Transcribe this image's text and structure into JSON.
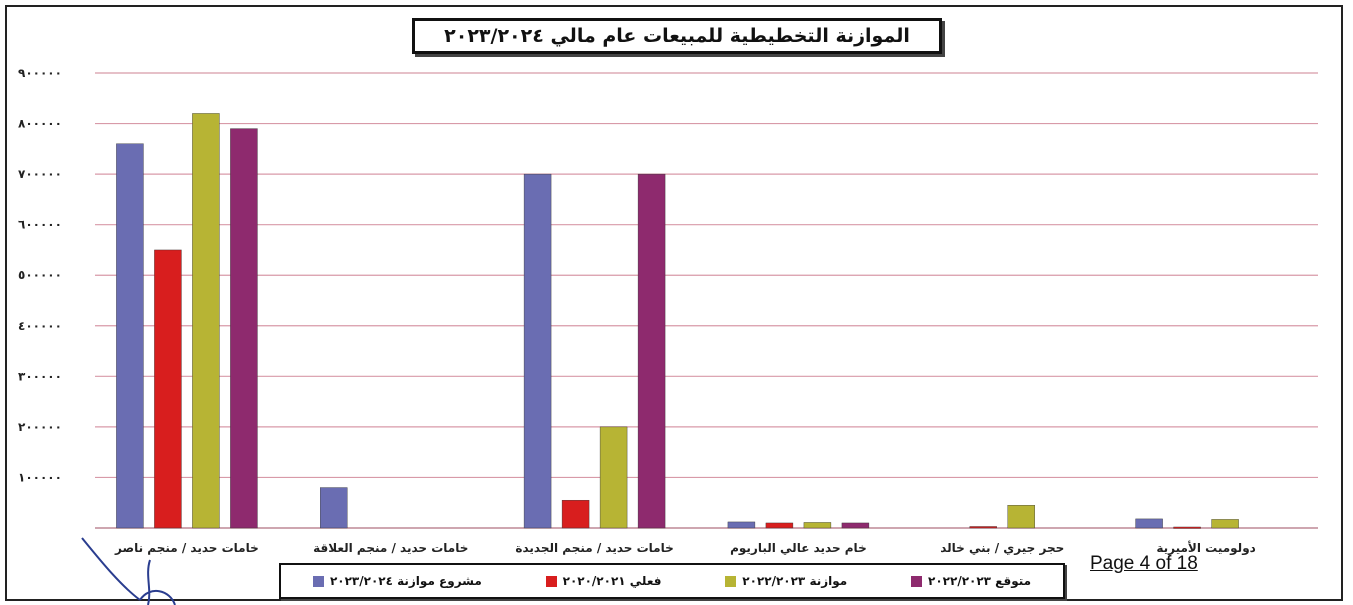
{
  "page_label": "Page 4 of 18",
  "chart_data": {
    "type": "bar",
    "title": "الموازنة التخطيطية للمبيعات عام مالي ٢٠٢٣/٢٠٢٤",
    "xlabel": "",
    "ylabel": "",
    "ylim": [
      0,
      900000
    ],
    "yticks": [
      0,
      100000,
      200000,
      300000,
      400000,
      500000,
      600000,
      700000,
      800000,
      900000
    ],
    "ytick_labels": [
      "",
      "١٠٠٠٠٠",
      "٢٠٠٠٠٠",
      "٣٠٠٠٠٠",
      "٤٠٠٠٠٠",
      "٥٠٠٠٠٠",
      "٦٠٠٠٠٠",
      "٧٠٠٠٠٠",
      "٨٠٠٠٠٠",
      "٩٠٠٠٠٠"
    ],
    "grid": true,
    "legend_position": "bottom",
    "categories": [
      "خامات حديد / منجم ناصر",
      "خامات حديد / منجم العلاقة",
      "خامات حديد / منجم الجديدة",
      "خام حديد عالي الباريوم",
      "حجر جيري / بني خالد",
      "دولوميت الأميرية"
    ],
    "series": [
      {
        "name": "مشروع موازنة ٢٠٢٣/٢٠٢٤",
        "color": "#6a6db2",
        "values": [
          760000,
          80000,
          700000,
          12000,
          0,
          18000
        ]
      },
      {
        "name": "فعلي ٢٠٢٠/٢٠٢١",
        "color": "#d81e1e",
        "values": [
          550000,
          0,
          55000,
          10000,
          3000,
          2000
        ]
      },
      {
        "name": "موازنة ٢٠٢٢/٢٠٢٣",
        "color": "#b7b434",
        "values": [
          820000,
          0,
          200000,
          11000,
          45000,
          17000
        ]
      },
      {
        "name": "متوقع ٢٠٢٢/٢٠٢٣",
        "color": "#8e2a6e",
        "values": [
          790000,
          0,
          700000,
          10000,
          0,
          0
        ]
      }
    ]
  }
}
